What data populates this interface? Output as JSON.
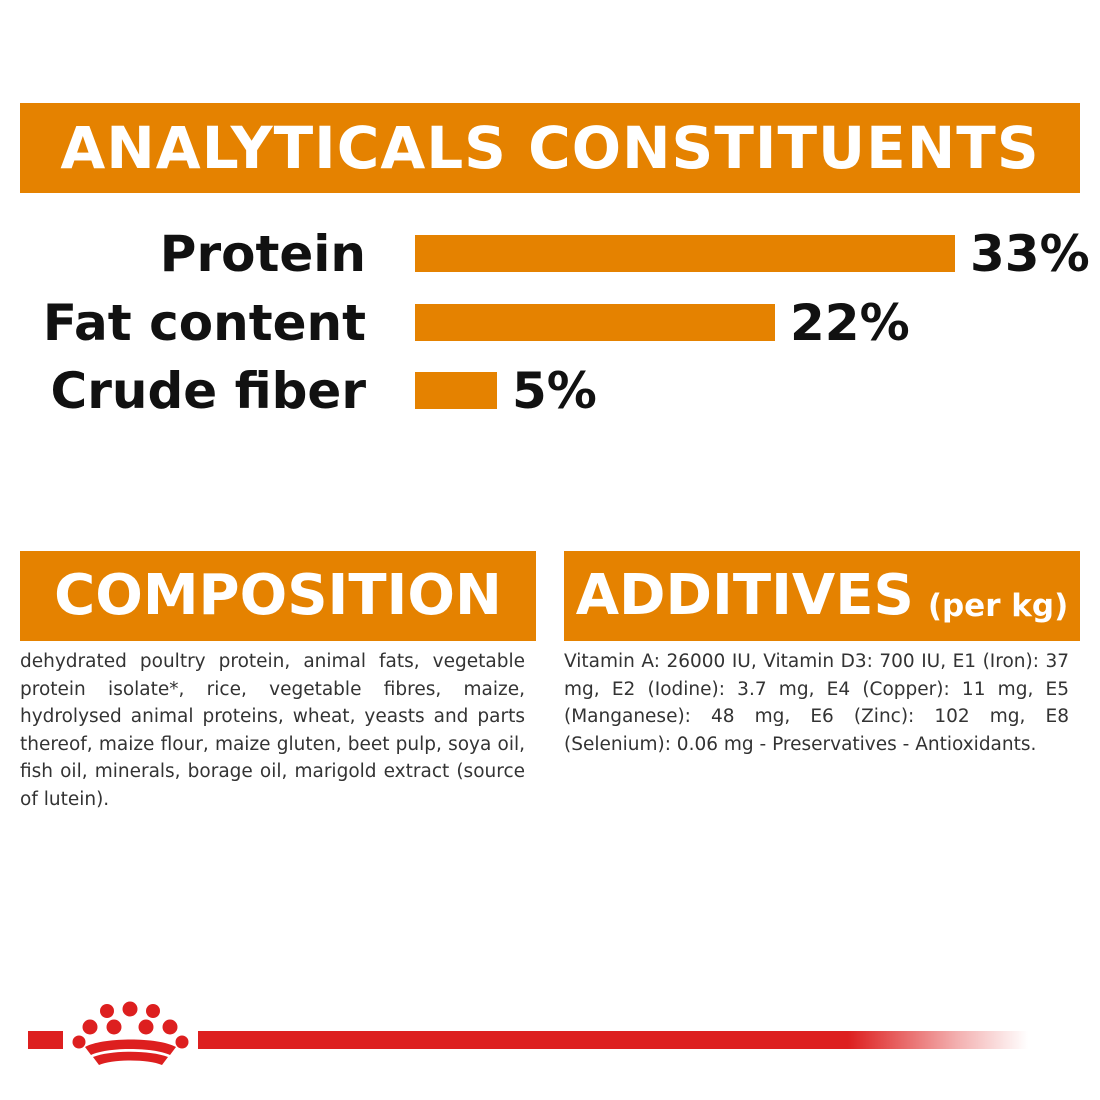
{
  "analytical": {
    "title": "ANALYTICALS CONSTITUENTS",
    "rows": [
      {
        "label": "Protein",
        "value_text": "33%",
        "percent": 33
      },
      {
        "label": "Fat content",
        "value_text": "22%",
        "percent": 22
      },
      {
        "label": "Crude fiber",
        "value_text": "5%",
        "percent": 5
      }
    ]
  },
  "composition": {
    "title": "COMPOSITION",
    "text": "dehydrated poultry protein, animal fats, vegetable protein isolate*, rice, vegetable fibres, maize, hydrolysed animal proteins, wheat, yeasts and parts thereof, maize flour, maize gluten, beet pulp, soya oil, fish oil, minerals, borage oil, marigold extract (source of lutein)."
  },
  "additives": {
    "title": "ADDITIVES",
    "unit": "(per kg)",
    "text": "Vitamin A: 26000 IU, Vitamin D3: 700 IU, E1 (Iron): 37 mg, E2 (Iodine): 3.7 mg, E4 (Copper): 11 mg, E5 (Manganese): 48 mg, E6 (Zinc): 102 mg, E8 (Selenium): 0.06 mg - Preservatives - Antioxidants."
  },
  "colors": {
    "accent": "#e58200",
    "brand_red": "#dd1f1f",
    "text": "#111111"
  },
  "footer": {
    "logo_icon": "crown-logo-icon"
  }
}
